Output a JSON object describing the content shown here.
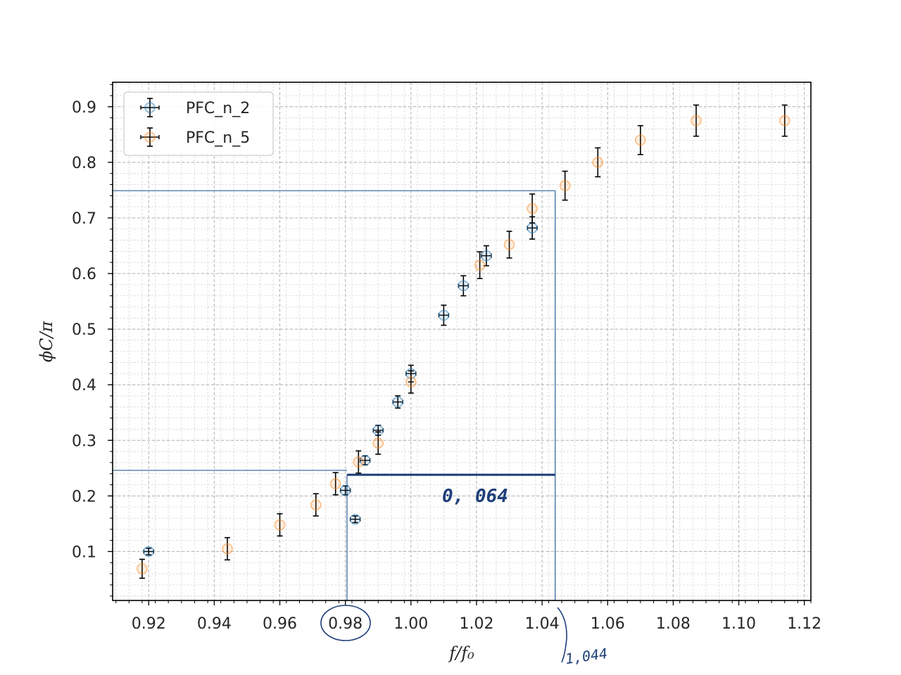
{
  "chart_data": {
    "type": "scatter",
    "xlabel": "f/f₀",
    "ylabel": "ϕC/π",
    "xlim": [
      0.909,
      1.122
    ],
    "ylim": [
      0.012,
      0.944
    ],
    "x_ticks": [
      "0.92",
      "0.94",
      "0.96",
      "0.98",
      "1.00",
      "1.02",
      "1.04",
      "1.06",
      "1.08",
      "1.10",
      "1.12"
    ],
    "y_ticks": [
      "0.1",
      "0.2",
      "0.3",
      "0.4",
      "0.5",
      "0.6",
      "0.7",
      "0.8",
      "0.9"
    ],
    "grid": "major and minor, dashed",
    "legend_position": "top-left",
    "series": [
      {
        "name": "PFC_n_2",
        "color": "#1f77b4",
        "points": [
          {
            "x": 0.92,
            "y": 0.1,
            "yerr": 0.006,
            "xerr": 0.0015
          },
          {
            "x": 0.983,
            "y": 0.158,
            "yerr": 0.006,
            "xerr": 0.0015
          },
          {
            "x": 0.98,
            "y": 0.21,
            "yerr": 0.008,
            "xerr": 0.0015
          },
          {
            "x": 0.986,
            "y": 0.264,
            "yerr": 0.008,
            "xerr": 0.0015
          },
          {
            "x": 0.99,
            "y": 0.318,
            "yerr": 0.009,
            "xerr": 0.0015
          },
          {
            "x": 0.996,
            "y": 0.369,
            "yerr": 0.011,
            "xerr": 0.0015
          },
          {
            "x": 1.0,
            "y": 0.42,
            "yerr": 0.015,
            "xerr": 0.0015
          },
          {
            "x": 1.01,
            "y": 0.525,
            "yerr": 0.018,
            "xerr": 0.0015
          },
          {
            "x": 1.016,
            "y": 0.578,
            "yerr": 0.018,
            "xerr": 0.0015
          },
          {
            "x": 1.023,
            "y": 0.632,
            "yerr": 0.018,
            "xerr": 0.0015
          },
          {
            "x": 1.037,
            "y": 0.682,
            "yerr": 0.02,
            "xerr": 0.0015
          }
        ]
      },
      {
        "name": "PFC_n_5",
        "color": "#ff7f0e",
        "points": [
          {
            "x": 0.918,
            "y": 0.069,
            "yerr": 0.017,
            "xerr": 0
          },
          {
            "x": 0.944,
            "y": 0.105,
            "yerr": 0.02,
            "xerr": 0
          },
          {
            "x": 0.96,
            "y": 0.148,
            "yerr": 0.02,
            "xerr": 0
          },
          {
            "x": 0.971,
            "y": 0.184,
            "yerr": 0.02,
            "xerr": 0
          },
          {
            "x": 0.977,
            "y": 0.222,
            "yerr": 0.02,
            "xerr": 0
          },
          {
            "x": 0.984,
            "y": 0.261,
            "yerr": 0.02,
            "xerr": 0
          },
          {
            "x": 0.99,
            "y": 0.295,
            "yerr": 0.02,
            "xerr": 0
          },
          {
            "x": 1.0,
            "y": 0.405,
            "yerr": 0.02,
            "xerr": 0
          },
          {
            "x": 1.021,
            "y": 0.615,
            "yerr": 0.024,
            "xerr": 0
          },
          {
            "x": 1.03,
            "y": 0.652,
            "yerr": 0.024,
            "xerr": 0
          },
          {
            "x": 1.037,
            "y": 0.717,
            "yerr": 0.026,
            "xerr": 0
          },
          {
            "x": 1.047,
            "y": 0.758,
            "yerr": 0.026,
            "xerr": 0
          },
          {
            "x": 1.057,
            "y": 0.8,
            "yerr": 0.026,
            "xerr": 0
          },
          {
            "x": 1.07,
            "y": 0.84,
            "yerr": 0.026,
            "xerr": 0
          },
          {
            "x": 1.087,
            "y": 0.875,
            "yerr": 0.028,
            "xerr": 0
          },
          {
            "x": 1.114,
            "y": 0.875,
            "yerr": 0.028,
            "xerr": 0
          }
        ]
      }
    ],
    "annotations": {
      "color": "#2a5fa0",
      "hline_low": {
        "y": 0.246,
        "x_to": 0.9805
      },
      "hline_high": {
        "y": 0.749,
        "x_to": 1.044
      },
      "vline_left": {
        "x": 0.9805,
        "y_to": 0.238
      },
      "vline_right": {
        "x": 1.044,
        "y_to": 0.749
      },
      "span_line": {
        "y": 0.238,
        "x_from": 0.9805,
        "x_to": 1.044
      },
      "span_label": "0, 064",
      "right_label": "1,044",
      "circled_tick": "0.98"
    }
  }
}
